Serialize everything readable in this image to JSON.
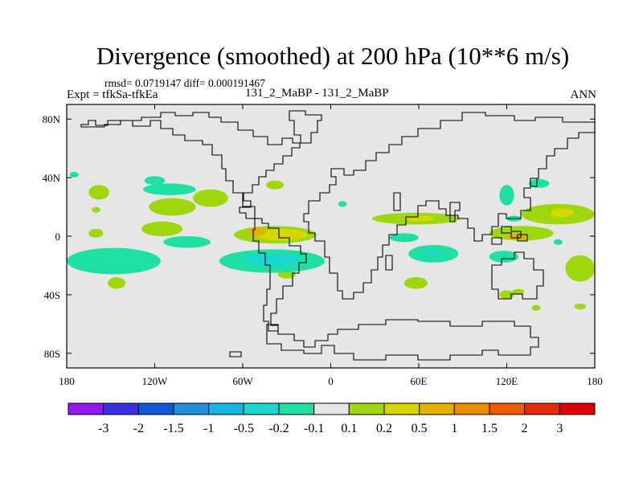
{
  "chart_data": {
    "type": "heatmap",
    "title": "Divergence (smoothed) at 200 hPa (10**6 m/s)",
    "stats_text": "rmsd= 0.0719147 diff= 0.000191467",
    "left_label": "Expt = tfkSa-tfkEa",
    "center_label": "131_2_MaBP - 131_2_MaBP",
    "right_label": "ANN",
    "x_tick_labels": [
      "180",
      "120W",
      "60W",
      "0",
      "60E",
      "120E",
      "180"
    ],
    "y_tick_labels": [
      "80N",
      "40N",
      "0",
      "40S",
      "80S"
    ],
    "xlim": [
      -180,
      180
    ],
    "ylim": [
      -90,
      90
    ],
    "colorbar": {
      "labels": [
        "-3",
        "-2",
        "-1.5",
        "-1",
        "-0.5",
        "-0.2",
        "-0.1",
        "0.1",
        "0.2",
        "0.5",
        "1",
        "1.5",
        "2",
        "3"
      ],
      "colors": [
        "#9316f0",
        "#3a2fe3",
        "#0f58d8",
        "#1e8fd9",
        "#17b6e0",
        "#19d6d0",
        "#1ee0a3",
        "#e6e6e6",
        "#9ed80c",
        "#d6d600",
        "#e6b000",
        "#eb8c00",
        "#f05b00",
        "#e82a0a",
        "#e00000"
      ]
    },
    "background_color": "#e6e6e6",
    "regions": [
      {
        "label": "green",
        "color": "#9ed80c",
        "lon": -158,
        "lat": 30,
        "rlon": 7,
        "rlat": 5
      },
      {
        "label": "green",
        "color": "#9ed80c",
        "lon": -160,
        "lat": 18,
        "rlon": 3,
        "rlat": 2
      },
      {
        "label": "green",
        "color": "#9ed80c",
        "lon": -108,
        "lat": 20,
        "rlon": 16,
        "rlat": 6
      },
      {
        "label": "green",
        "color": "#9ed80c",
        "lon": -82,
        "lat": 26,
        "rlon": 12,
        "rlat": 6
      },
      {
        "label": "green",
        "color": "#9ed80c",
        "lon": -38,
        "lat": 35,
        "rlon": 6,
        "rlat": 3
      },
      {
        "label": "green",
        "color": "#9ed80c",
        "lon": -115,
        "lat": 5,
        "rlon": 14,
        "rlat": 5
      },
      {
        "label": "green",
        "color": "#9ed80c",
        "lon": -160,
        "lat": 2,
        "rlon": 5,
        "rlat": 3
      },
      {
        "label": "green",
        "color": "#9ed80c",
        "lon": -38,
        "lat": 1,
        "rlon": 28,
        "rlat": 6
      },
      {
        "label": "yellow",
        "color": "#d6d600",
        "lon": -34,
        "lat": 1,
        "rlon": 18,
        "rlat": 4
      },
      {
        "label": "orange",
        "color": "#e6b000",
        "lon": -50,
        "lat": 3,
        "rlon": 6,
        "rlat": 3
      },
      {
        "label": "green",
        "color": "#9ed80c",
        "lon": 58,
        "lat": 12,
        "rlon": 30,
        "rlat": 4
      },
      {
        "label": "yellow",
        "color": "#d6d600",
        "lon": 60,
        "lat": 12,
        "rlon": 10,
        "rlat": 2
      },
      {
        "label": "green",
        "color": "#9ed80c",
        "lon": 130,
        "lat": 2,
        "rlon": 22,
        "rlat": 5
      },
      {
        "label": "orange",
        "color": "#e6b000",
        "lon": 127,
        "lat": 0,
        "rlon": 8,
        "rlat": 2
      },
      {
        "label": "green",
        "color": "#9ed80c",
        "lon": 155,
        "lat": 15,
        "rlon": 25,
        "rlat": 7
      },
      {
        "label": "yellow",
        "color": "#d6d600",
        "lon": 158,
        "lat": 16,
        "rlon": 8,
        "rlat": 3
      },
      {
        "label": "green",
        "color": "#9ed80c",
        "lon": 170,
        "lat": -22,
        "rlon": 10,
        "rlat": 9
      },
      {
        "label": "green",
        "color": "#9ed80c",
        "lon": 170,
        "lat": -48,
        "rlon": 4,
        "rlat": 2
      },
      {
        "label": "green",
        "color": "#9ed80c",
        "lon": -146,
        "lat": -32,
        "rlon": 6,
        "rlat": 4
      },
      {
        "label": "green",
        "color": "#9ed80c",
        "lon": -30,
        "lat": -26,
        "rlon": 6,
        "rlat": 3
      },
      {
        "label": "green",
        "color": "#9ed80c",
        "lon": 58,
        "lat": -32,
        "rlon": 8,
        "rlat": 4
      },
      {
        "label": "green",
        "color": "#9ed80c",
        "lon": 120,
        "lat": -40,
        "rlon": 5,
        "rlat": 3
      },
      {
        "label": "green",
        "color": "#9ed80c",
        "lon": 128,
        "lat": -38,
        "rlon": 4,
        "rlat": 2
      },
      {
        "label": "green",
        "color": "#9ed80c",
        "lon": 140,
        "lat": -49,
        "rlon": 3,
        "rlat": 2
      },
      {
        "label": "teal",
        "color": "#1ee0a3",
        "lon": -120,
        "lat": 38,
        "rlon": 7,
        "rlat": 3
      },
      {
        "label": "teal",
        "color": "#1ee0a3",
        "lon": -175,
        "lat": 42,
        "rlon": 3,
        "rlat": 2
      },
      {
        "label": "teal",
        "color": "#1ee0a3",
        "lon": -110,
        "lat": 32,
        "rlon": 18,
        "rlat": 4
      },
      {
        "label": "teal",
        "color": "#1ee0a3",
        "lon": -98,
        "lat": -4,
        "rlon": 16,
        "rlat": 4
      },
      {
        "label": "teal",
        "color": "#1ee0a3",
        "lon": -148,
        "lat": -17,
        "rlon": 32,
        "rlat": 9
      },
      {
        "label": "teal",
        "color": "#1ee0a3",
        "lon": -40,
        "lat": -17,
        "rlon": 36,
        "rlat": 8
      },
      {
        "label": "cyan",
        "color": "#19d6d0",
        "lon": -40,
        "lat": -16,
        "rlon": 20,
        "rlat": 4
      },
      {
        "label": "teal",
        "color": "#1ee0a3",
        "lon": 8,
        "lat": 22,
        "rlon": 3,
        "rlat": 2
      },
      {
        "label": "teal",
        "color": "#1ee0a3",
        "lon": 50,
        "lat": -1,
        "rlon": 10,
        "rlat": 3
      },
      {
        "label": "teal",
        "color": "#1ee0a3",
        "lon": 70,
        "lat": -12,
        "rlon": 17,
        "rlat": 6
      },
      {
        "label": "cyan",
        "color": "#19d6d0",
        "lon": 70,
        "lat": -12,
        "rlon": 6,
        "rlat": 2
      },
      {
        "label": "teal",
        "color": "#1ee0a3",
        "lon": 120,
        "lat": 28,
        "rlon": 5,
        "rlat": 7
      },
      {
        "label": "teal",
        "color": "#1ee0a3",
        "lon": 142,
        "lat": 36,
        "rlon": 7,
        "rlat": 3
      },
      {
        "label": "teal",
        "color": "#1ee0a3",
        "lon": 118,
        "lat": -14,
        "rlon": 10,
        "rlat": 4
      },
      {
        "label": "teal",
        "color": "#1ee0a3",
        "lon": 155,
        "lat": -4,
        "rlon": 3,
        "rlat": 2
      },
      {
        "label": "teal",
        "color": "#1ee0a3",
        "lon": 125,
        "lat": 12,
        "rlon": 5,
        "rlat": 2
      }
    ]
  }
}
